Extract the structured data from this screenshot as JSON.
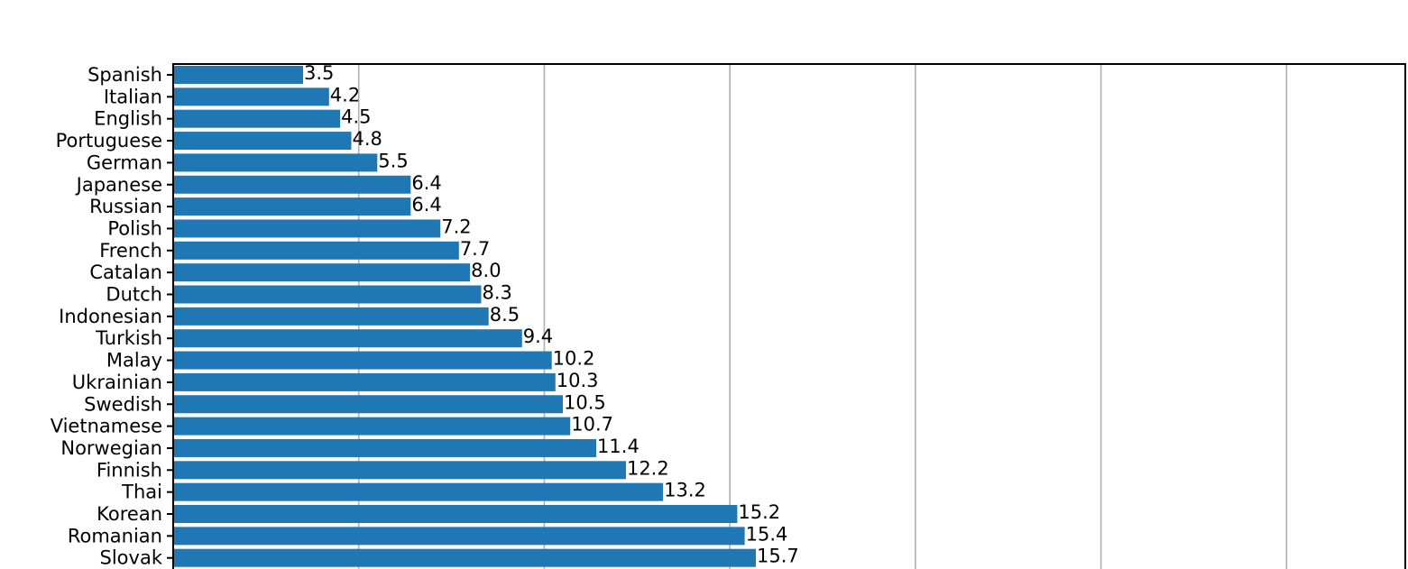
{
  "chart_data": {
    "type": "bar",
    "orientation": "horizontal",
    "title": "",
    "xlabel": "",
    "ylabel": "",
    "categories": [
      "Spanish",
      "Italian",
      "English",
      "Portuguese",
      "German",
      "Japanese",
      "Russian",
      "Polish",
      "French",
      "Catalan",
      "Dutch",
      "Indonesian",
      "Turkish",
      "Malay",
      "Ukrainian",
      "Swedish",
      "Vietnamese",
      "Norwegian",
      "Finnish",
      "Thai",
      "Korean",
      "Romanian",
      "Slovak"
    ],
    "values": [
      3.5,
      4.2,
      4.5,
      4.8,
      5.5,
      6.4,
      6.4,
      7.2,
      7.7,
      8.0,
      8.3,
      8.5,
      9.4,
      10.2,
      10.3,
      10.5,
      10.7,
      11.4,
      12.2,
      13.2,
      15.2,
      15.4,
      15.7
    ],
    "value_labels": [
      "3.5",
      "4.2",
      "4.5",
      "4.8",
      "5.5",
      "6.4",
      "6.4",
      "7.2",
      "7.7",
      "8.0",
      "8.3",
      "8.5",
      "9.4",
      "10.2",
      "10.3",
      "10.5",
      "10.7",
      "11.4",
      "12.2",
      "13.2",
      "15.2",
      "15.4",
      "15.7"
    ],
    "x_gridlines": [
      5,
      10,
      15,
      20,
      25,
      30
    ],
    "xlim": [
      0,
      33.2
    ],
    "grid": "vertical",
    "bar_color": "#1f77b4"
  }
}
